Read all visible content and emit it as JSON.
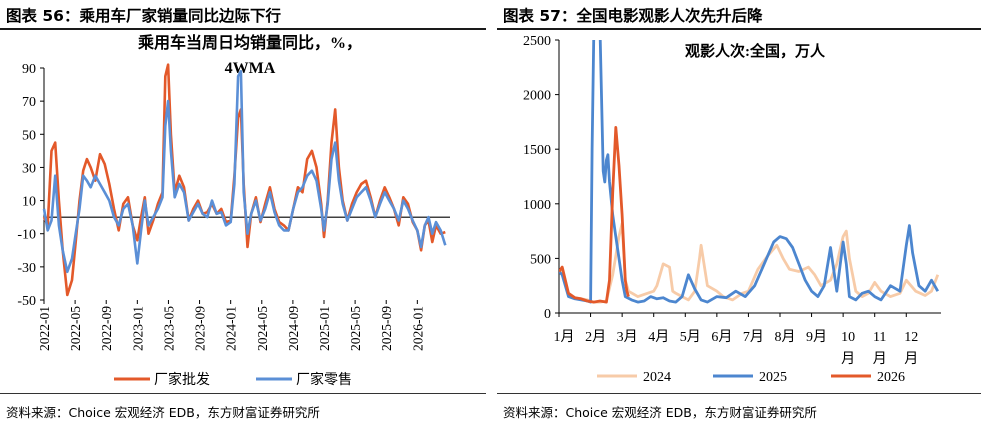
{
  "left": {
    "heading": "图表 56：乘用车厂家销量同比边际下行",
    "source": "资料来源：Choice 宏观经济 EDB，东方财富证券研究所"
  },
  "right": {
    "heading": "图表 57：全国电影观影人次先升后降",
    "source": "资料来源：Choice 宏观经济 EDB，东方财富证券研究所"
  },
  "colors": {
    "wholesale": "#E3592A",
    "retail": "#5B8FD6",
    "y2024": "#F7CBA8",
    "y2025": "#4C86CF",
    "y2026": "#E3592A"
  },
  "chart_data": [
    {
      "type": "line",
      "title": "乘用车当周日均销量同比，%，4WMA",
      "title_lines": [
        "乘用车当周日均销量同比，%，",
        "4WMA"
      ],
      "ylim": [
        -50,
        90
      ],
      "yticks": [
        90,
        70,
        50,
        30,
        10,
        -10,
        -30,
        -50
      ],
      "xlim": [
        2022.0,
        2026.35
      ],
      "xticks": [
        "2022-01",
        "2022-05",
        "2022-09",
        "2023-01",
        "2023-05",
        "2023-09",
        "2024-01",
        "2024-05",
        "2024-09",
        "2025-01",
        "2025-05",
        "2025-09",
        "2026-01"
      ],
      "series": [
        {
          "name": "厂家批发",
          "color_key": "wholesale",
          "x": [
            2022.0,
            2022.04,
            2022.08,
            2022.12,
            2022.16,
            2022.2,
            2022.25,
            2022.3,
            2022.34,
            2022.38,
            2022.42,
            2022.46,
            2022.5,
            2022.55,
            2022.6,
            2022.65,
            2022.7,
            2022.75,
            2022.8,
            2022.85,
            2022.9,
            2022.95,
            2023.0,
            2023.04,
            2023.08,
            2023.12,
            2023.17,
            2023.22,
            2023.27,
            2023.3,
            2023.33,
            2023.36,
            2023.4,
            2023.45,
            2023.5,
            2023.55,
            2023.6,
            2023.65,
            2023.7,
            2023.75,
            2023.8,
            2023.85,
            2023.9,
            2023.95,
            2024.0,
            2024.04,
            2024.08,
            2024.11,
            2024.14,
            2024.18,
            2024.22,
            2024.27,
            2024.32,
            2024.37,
            2024.42,
            2024.47,
            2024.52,
            2024.57,
            2024.62,
            2024.67,
            2024.72,
            2024.77,
            2024.82,
            2024.87,
            2024.92,
            2024.97,
            2025.0,
            2025.04,
            2025.08,
            2025.12,
            2025.16,
            2025.2,
            2025.25,
            2025.3,
            2025.35,
            2025.4,
            2025.45,
            2025.5,
            2025.55,
            2025.6,
            2025.65,
            2025.7,
            2025.75,
            2025.8,
            2025.85,
            2025.9,
            2025.95,
            2026.0,
            2026.04,
            2026.08,
            2026.12,
            2026.16,
            2026.2,
            2026.25,
            2026.3
          ],
          "y": [
            0,
            -5,
            40,
            45,
            10,
            -20,
            -47,
            -38,
            -15,
            10,
            28,
            35,
            30,
            22,
            38,
            32,
            20,
            5,
            -8,
            8,
            12,
            -5,
            -14,
            0,
            12,
            -10,
            -2,
            8,
            15,
            85,
            92,
            50,
            15,
            25,
            18,
            -2,
            5,
            10,
            2,
            3,
            8,
            2,
            5,
            -3,
            -2,
            25,
            60,
            65,
            20,
            -18,
            2,
            12,
            -3,
            8,
            18,
            5,
            -3,
            -5,
            -8,
            5,
            18,
            15,
            35,
            40,
            30,
            8,
            -12,
            10,
            45,
            65,
            30,
            10,
            -2,
            8,
            15,
            20,
            22,
            12,
            0,
            10,
            18,
            12,
            5,
            -5,
            12,
            8,
            -3,
            -8,
            -20,
            -5,
            -2,
            -15,
            -5,
            -10,
            -9
          ]
        },
        {
          "name": "厂家零售",
          "color_key": "retail",
          "x": [
            2022.0,
            2022.04,
            2022.08,
            2022.12,
            2022.16,
            2022.2,
            2022.25,
            2022.3,
            2022.34,
            2022.38,
            2022.42,
            2022.46,
            2022.5,
            2022.55,
            2022.6,
            2022.65,
            2022.7,
            2022.75,
            2022.8,
            2022.85,
            2022.9,
            2022.95,
            2023.0,
            2023.04,
            2023.08,
            2023.12,
            2023.17,
            2023.22,
            2023.27,
            2023.3,
            2023.33,
            2023.36,
            2023.4,
            2023.45,
            2023.5,
            2023.55,
            2023.6,
            2023.65,
            2023.7,
            2023.75,
            2023.8,
            2023.85,
            2023.9,
            2023.95,
            2024.0,
            2024.04,
            2024.08,
            2024.11,
            2024.14,
            2024.18,
            2024.22,
            2024.27,
            2024.32,
            2024.37,
            2024.42,
            2024.47,
            2024.52,
            2024.57,
            2024.62,
            2024.67,
            2024.72,
            2024.77,
            2024.82,
            2024.87,
            2024.92,
            2024.97,
            2025.0,
            2025.04,
            2025.08,
            2025.12,
            2025.16,
            2025.2,
            2025.25,
            2025.3,
            2025.35,
            2025.4,
            2025.45,
            2025.5,
            2025.55,
            2025.6,
            2025.65,
            2025.7,
            2025.75,
            2025.8,
            2025.85,
            2025.9,
            2025.95,
            2026.0,
            2026.04,
            2026.08,
            2026.12,
            2026.16,
            2026.2,
            2026.25,
            2026.3
          ],
          "y": [
            5,
            -8,
            -2,
            25,
            -5,
            -20,
            -33,
            -25,
            -10,
            5,
            25,
            22,
            18,
            25,
            20,
            15,
            10,
            0,
            -5,
            5,
            8,
            -5,
            -28,
            -8,
            10,
            -5,
            0,
            5,
            12,
            55,
            70,
            40,
            12,
            20,
            15,
            -2,
            3,
            8,
            2,
            0,
            10,
            2,
            3,
            -5,
            -3,
            20,
            85,
            88,
            15,
            -10,
            2,
            10,
            -2,
            5,
            15,
            3,
            -5,
            -8,
            -8,
            5,
            15,
            18,
            25,
            28,
            22,
            5,
            -8,
            8,
            35,
            45,
            22,
            8,
            -2,
            5,
            12,
            15,
            18,
            10,
            0,
            8,
            15,
            10,
            5,
            -2,
            10,
            5,
            -2,
            -8,
            -18,
            -5,
            0,
            -10,
            -3,
            -8,
            -17
          ]
        }
      ]
    },
    {
      "type": "line",
      "title": "观影人次:全国，万人",
      "ylim": [
        0,
        2500
      ],
      "yticks": [
        2500,
        2000,
        1500,
        1000,
        500,
        0
      ],
      "xlim": [
        1,
        13.1
      ],
      "xticks": [
        "1月",
        "2月",
        "3月",
        "4月",
        "5月",
        "6月",
        "7月",
        "8月",
        "9月",
        "10月",
        "11月",
        "12月"
      ],
      "series": [
        {
          "name": "2024",
          "color_key": "y2024",
          "x": [
            1.0,
            1.1,
            1.3,
            1.5,
            1.7,
            1.9,
            2.1,
            2.3,
            2.5,
            2.7,
            2.9,
            3.0,
            3.1,
            3.2,
            3.5,
            3.8,
            4.0,
            4.1,
            4.3,
            4.5,
            4.6,
            4.7,
            4.9,
            5.1,
            5.3,
            5.45,
            5.5,
            5.7,
            6.0,
            6.2,
            6.5,
            6.8,
            7.0,
            7.3,
            7.6,
            7.9,
            8.1,
            8.3,
            8.6,
            8.9,
            9.1,
            9.3,
            9.6,
            9.8,
            10.0,
            10.1,
            10.2,
            10.4,
            10.6,
            10.8,
            11.0,
            11.2,
            11.5,
            11.8,
            12.0,
            12.3,
            12.6,
            12.8,
            13.0
          ],
          "y": [
            380,
            400,
            170,
            140,
            130,
            120,
            100,
            100,
            110,
            350,
            700,
            820,
            300,
            200,
            150,
            180,
            200,
            250,
            450,
            420,
            200,
            180,
            150,
            120,
            200,
            500,
            620,
            250,
            200,
            150,
            120,
            180,
            200,
            400,
            520,
            620,
            500,
            400,
            380,
            420,
            350,
            250,
            300,
            450,
            700,
            750,
            500,
            200,
            150,
            180,
            280,
            200,
            150,
            180,
            300,
            200,
            160,
            200,
            350
          ]
        },
        {
          "name": "2025",
          "color_key": "y2025",
          "x": [
            1.0,
            1.1,
            1.3,
            1.5,
            1.7,
            1.9,
            2.0,
            2.05,
            2.1,
            2.2,
            2.3,
            2.4,
            2.45,
            2.5,
            2.55,
            2.6,
            2.7,
            2.8,
            2.9,
            3.0,
            3.1,
            3.3,
            3.5,
            3.7,
            3.9,
            4.1,
            4.3,
            4.5,
            4.7,
            4.9,
            5.1,
            5.3,
            5.5,
            5.7,
            6.0,
            6.3,
            6.6,
            6.9,
            7.2,
            7.5,
            7.8,
            8.0,
            8.2,
            8.4,
            8.6,
            8.8,
            9.0,
            9.2,
            9.4,
            9.6,
            9.8,
            10.0,
            10.1,
            10.2,
            10.4,
            10.6,
            10.8,
            11.0,
            11.2,
            11.5,
            11.8,
            12.0,
            12.1,
            12.2,
            12.4,
            12.6,
            12.8,
            13.0
          ],
          "y": [
            380,
            350,
            150,
            130,
            120,
            110,
            100,
            1500,
            2500,
            2600,
            2600,
            1300,
            1200,
            1400,
            1450,
            1200,
            900,
            700,
            500,
            300,
            150,
            120,
            100,
            110,
            150,
            130,
            140,
            110,
            100,
            150,
            350,
            220,
            120,
            100,
            150,
            140,
            200,
            150,
            250,
            450,
            650,
            700,
            680,
            600,
            450,
            300,
            200,
            150,
            250,
            600,
            200,
            650,
            450,
            150,
            120,
            180,
            200,
            150,
            120,
            250,
            200,
            620,
            800,
            550,
            250,
            200,
            300,
            200
          ]
        },
        {
          "name": "2026",
          "color_key": "y2026",
          "x": [
            1.0,
            1.1,
            1.3,
            1.5,
            1.7,
            1.9,
            2.1,
            2.3,
            2.5,
            2.6,
            2.65,
            2.7,
            2.8,
            2.9,
            3.0,
            3.05,
            3.1,
            3.15,
            3.2
          ],
          "y": [
            380,
            420,
            180,
            140,
            130,
            110,
            100,
            110,
            100,
            300,
            700,
            1100,
            1700,
            1350,
            900,
            600,
            300,
            200,
            150
          ]
        }
      ]
    }
  ]
}
